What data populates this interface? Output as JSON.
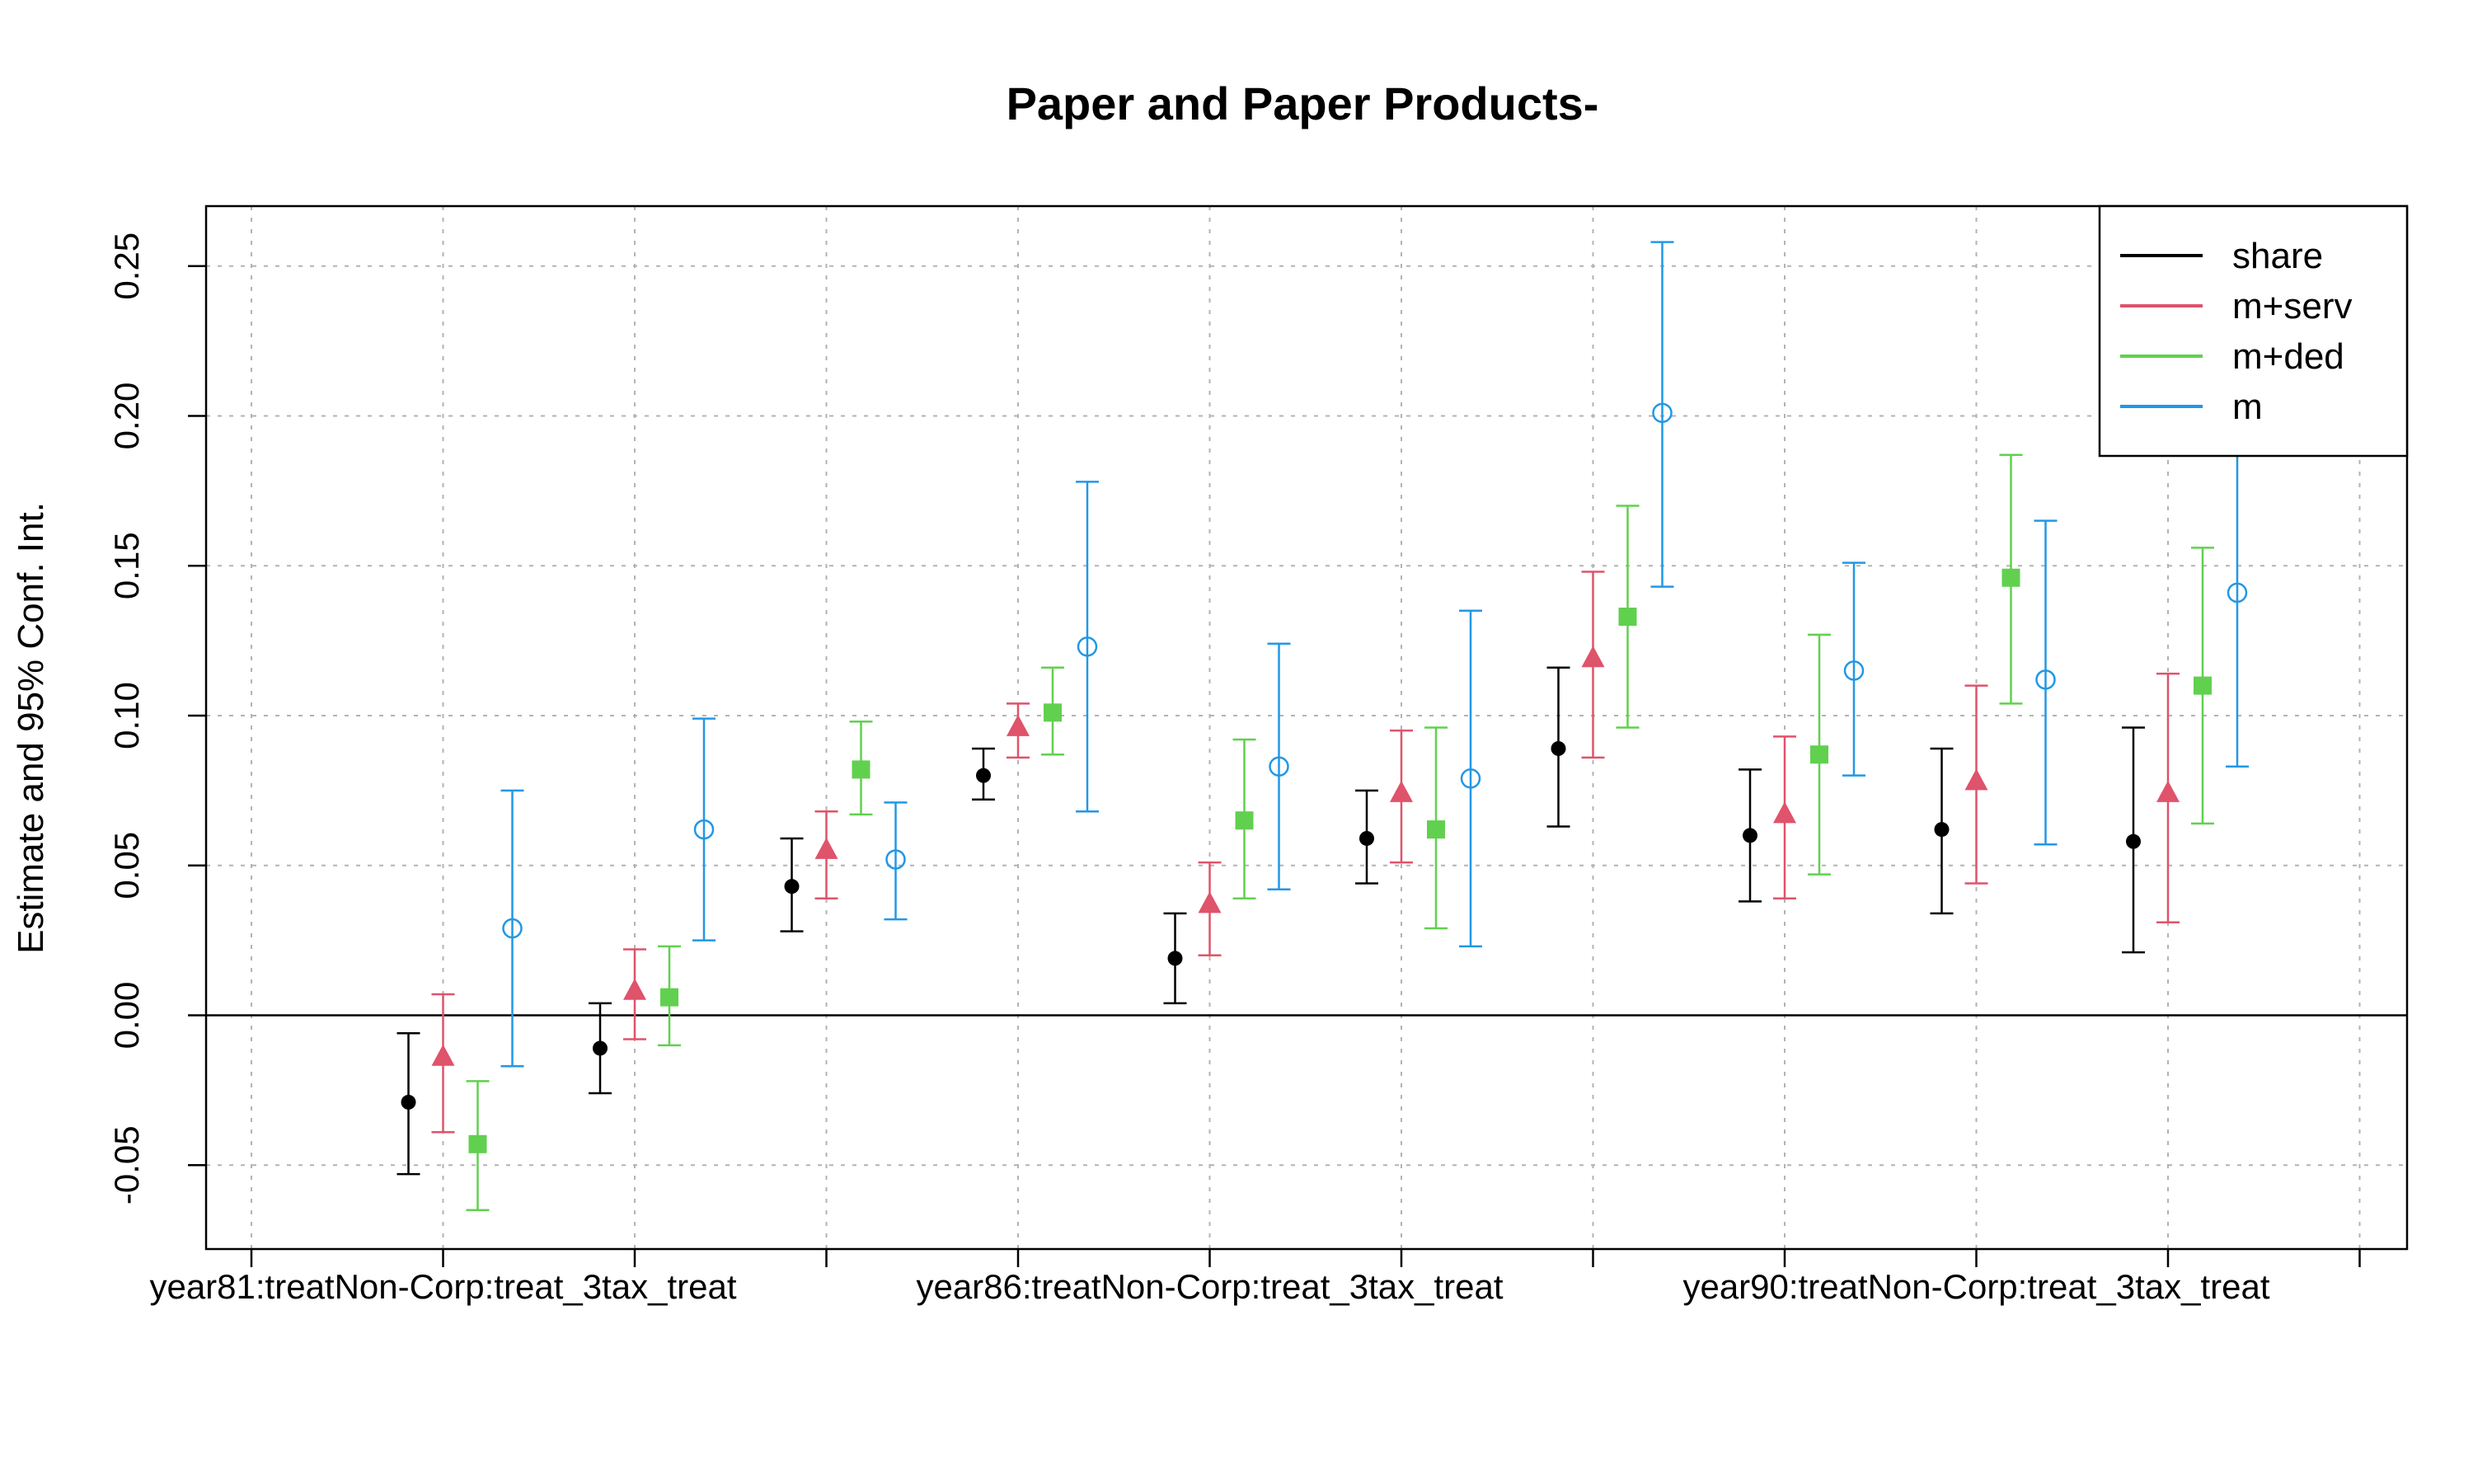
{
  "chart_data": {
    "type": "scatter",
    "title": "Paper and Paper Products-",
    "ylabel": "Estimate and 95% Conf. Int.",
    "xlabel": "",
    "ylim": [
      -0.078,
      0.27
    ],
    "yticks": [
      "-0.05",
      "0.00",
      "0.05",
      "0.10",
      "0.15",
      "0.20",
      "0.25"
    ],
    "ytick_values": [
      -0.05,
      0.0,
      0.05,
      0.1,
      0.15,
      0.2,
      0.25
    ],
    "xticklabels": [
      {
        "group": 1,
        "label": "year81:treatNon-Corp:treat_3tax_treat"
      },
      {
        "group": 5,
        "label": "year86:treatNon-Corp:treat_3tax_treat"
      },
      {
        "group": 9,
        "label": "year90:treatNon-Corp:treat_3tax_treat"
      }
    ],
    "n_groups": 11,
    "grid": true,
    "zero_line": true,
    "legend_position": "top-right",
    "series": [
      {
        "name": "share",
        "color": "#000000",
        "marker": "dot",
        "estimates": [
          -0.029,
          -0.011,
          0.043,
          0.08,
          0.019,
          0.059,
          0.089,
          0.06,
          0.062,
          0.058
        ],
        "lower": [
          -0.053,
          -0.026,
          0.028,
          0.072,
          0.004,
          0.044,
          0.063,
          0.038,
          0.034,
          0.021
        ],
        "upper": [
          -0.006,
          0.004,
          0.059,
          0.089,
          0.034,
          0.075,
          0.116,
          0.082,
          0.089,
          0.096
        ]
      },
      {
        "name": "m+serv",
        "color": "#DF536B",
        "marker": "triangle",
        "estimates": [
          -0.014,
          0.008,
          0.055,
          0.096,
          0.037,
          0.074,
          0.119,
          0.067,
          0.078,
          0.074
        ],
        "lower": [
          -0.039,
          -0.008,
          0.039,
          0.086,
          0.02,
          0.051,
          0.086,
          0.039,
          0.044,
          0.031
        ],
        "upper": [
          0.007,
          0.022,
          0.068,
          0.104,
          0.051,
          0.095,
          0.148,
          0.093,
          0.11,
          0.114
        ]
      },
      {
        "name": "m+ded",
        "color": "#61D04F",
        "marker": "square",
        "estimates": [
          -0.043,
          0.006,
          0.082,
          0.101,
          0.065,
          0.062,
          0.133,
          0.087,
          0.146,
          0.11
        ],
        "lower": [
          -0.065,
          -0.01,
          0.067,
          0.087,
          0.039,
          0.029,
          0.096,
          0.047,
          0.104,
          0.064
        ],
        "upper": [
          -0.022,
          0.023,
          0.098,
          0.116,
          0.092,
          0.096,
          0.17,
          0.127,
          0.187,
          0.156
        ]
      },
      {
        "name": "m",
        "color": "#2297E6",
        "marker": "circle",
        "estimates": [
          0.029,
          0.062,
          0.052,
          0.123,
          0.083,
          0.079,
          0.201,
          0.115,
          0.112,
          0.141
        ],
        "lower": [
          -0.017,
          0.025,
          0.032,
          0.068,
          0.042,
          0.023,
          0.143,
          0.08,
          0.057,
          0.083
        ],
        "upper": [
          0.075,
          0.099,
          0.071,
          0.178,
          0.124,
          0.135,
          0.258,
          0.151,
          0.165,
          0.198
        ]
      }
    ]
  }
}
